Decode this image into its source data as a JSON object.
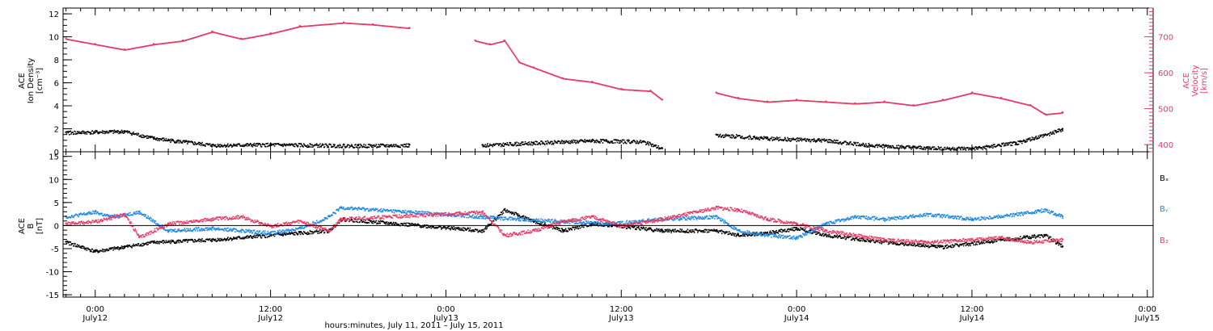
{
  "chart_data": [
    {
      "type": "scatter",
      "panel": "top",
      "ylabel_lines": [
        "ACE",
        "Ion Density",
        "[cm⁻³]"
      ],
      "ylim": [
        0,
        12.5
      ],
      "yticks": [
        0,
        2,
        4,
        6,
        8,
        10,
        12
      ],
      "y2label_lines": [
        "ACE",
        "Velocity",
        "[km/s]"
      ],
      "y2lim": [
        380,
        780
      ],
      "y2ticks": [
        400,
        500,
        600,
        700
      ],
      "series": [
        {
          "axis": "left",
          "color": "#000000",
          "values": [
            {
              "t": -2.0,
              "v": 1.7
            },
            {
              "t": 2.0,
              "v": 1.8
            },
            {
              "t": 4.0,
              "v": 1.2
            },
            {
              "t": 8.0,
              "v": 0.6
            },
            {
              "t": 12.0,
              "v": 0.65
            },
            {
              "t": 18.0,
              "v": 0.55
            },
            {
              "t": 21.5,
              "v": 0.6
            }
          ]
        },
        {
          "axis": "left",
          "color": "#000000",
          "values": [
            {
              "t": 26.5,
              "v": 0.6
            },
            {
              "t": 30.0,
              "v": 0.8
            },
            {
              "t": 34.0,
              "v": 1.0
            },
            {
              "t": 37.5,
              "v": 0.9
            },
            {
              "t": 38.8,
              "v": 0.3
            }
          ]
        },
        {
          "axis": "left",
          "color": "#000000",
          "values": [
            {
              "t": 42.5,
              "v": 1.5
            },
            {
              "t": 46.0,
              "v": 1.2
            },
            {
              "t": 50.0,
              "v": 1.0
            },
            {
              "t": 53.0,
              "v": 0.6
            },
            {
              "t": 56.0,
              "v": 0.4
            },
            {
              "t": 60.0,
              "v": 0.3
            },
            {
              "t": 63.0,
              "v": 0.8
            },
            {
              "t": 65.0,
              "v": 1.5
            },
            {
              "t": 66.2,
              "v": 2.0
            }
          ]
        },
        {
          "axis": "right",
          "color": "#e83a65",
          "values": [
            {
              "t": -2.0,
              "v": 695
            },
            {
              "t": 0.0,
              "v": 680
            },
            {
              "t": 2.0,
              "v": 665
            },
            {
              "t": 4.0,
              "v": 680
            },
            {
              "t": 6.0,
              "v": 690
            },
            {
              "t": 8.0,
              "v": 715
            },
            {
              "t": 10.0,
              "v": 695
            },
            {
              "t": 12.0,
              "v": 710
            },
            {
              "t": 14.0,
              "v": 730
            },
            {
              "t": 17.0,
              "v": 740
            },
            {
              "t": 19.0,
              "v": 735
            },
            {
              "t": 21.5,
              "v": 725
            }
          ]
        },
        {
          "axis": "right",
          "color": "#e83a65",
          "values": [
            {
              "t": 26.0,
              "v": 690
            },
            {
              "t": 27.0,
              "v": 680
            },
            {
              "t": 28.0,
              "v": 690
            },
            {
              "t": 29.0,
              "v": 630
            },
            {
              "t": 30.0,
              "v": 615
            },
            {
              "t": 32.0,
              "v": 585
            },
            {
              "t": 34.0,
              "v": 575
            },
            {
              "t": 36.0,
              "v": 555
            },
            {
              "t": 38.0,
              "v": 550
            },
            {
              "t": 38.8,
              "v": 525
            }
          ]
        },
        {
          "axis": "right",
          "color": "#e83a65",
          "values": [
            {
              "t": 42.5,
              "v": 545
            },
            {
              "t": 44.0,
              "v": 530
            },
            {
              "t": 46.0,
              "v": 520
            },
            {
              "t": 48.0,
              "v": 525
            },
            {
              "t": 50.0,
              "v": 520
            },
            {
              "t": 52.0,
              "v": 515
            },
            {
              "t": 54.0,
              "v": 520
            },
            {
              "t": 56.0,
              "v": 510
            },
            {
              "t": 58.0,
              "v": 525
            },
            {
              "t": 60.0,
              "v": 545
            },
            {
              "t": 62.0,
              "v": 530
            },
            {
              "t": 64.0,
              "v": 510
            },
            {
              "t": 65.0,
              "v": 485
            },
            {
              "t": 66.2,
              "v": 490
            }
          ]
        }
      ]
    },
    {
      "type": "scatter",
      "panel": "bottom",
      "ylabel_lines": [
        "ACE",
        "B",
        "[nT]"
      ],
      "ylim": [
        -15.5,
        16
      ],
      "yticks": [
        -15,
        -10,
        -5,
        0,
        5,
        10,
        15
      ],
      "legend": [
        "Bₓ",
        "Bᵧ",
        "B₂"
      ],
      "series": [
        {
          "name": "Bₓ",
          "color": "#000000",
          "values": [
            {
              "t": -2.0,
              "v": -3.5
            },
            {
              "t": 0.0,
              "v": -5.5
            },
            {
              "t": 2.0,
              "v": -4.5
            },
            {
              "t": 4.0,
              "v": -3.5
            },
            {
              "t": 8.0,
              "v": -3.0
            },
            {
              "t": 12.0,
              "v": -2.0
            },
            {
              "t": 14.0,
              "v": -1.5
            },
            {
              "t": 16.0,
              "v": -1.0
            },
            {
              "t": 16.8,
              "v": 1.5
            },
            {
              "t": 26.5,
              "v": -1.0
            },
            {
              "t": 28.0,
              "v": 3.5
            },
            {
              "t": 30.0,
              "v": 1.0
            },
            {
              "t": 32.0,
              "v": -1.0
            },
            {
              "t": 34.0,
              "v": 0.5
            },
            {
              "t": 36.0,
              "v": 0.0
            },
            {
              "t": 38.8,
              "v": -1.0
            },
            {
              "t": 42.5,
              "v": -1.0
            },
            {
              "t": 44.0,
              "v": -2.0
            },
            {
              "t": 46.0,
              "v": -1.5
            },
            {
              "t": 48.0,
              "v": -0.5
            },
            {
              "t": 50.0,
              "v": -2.0
            },
            {
              "t": 54.0,
              "v": -3.5
            },
            {
              "t": 58.0,
              "v": -4.5
            },
            {
              "t": 62.0,
              "v": -3.0
            },
            {
              "t": 65.0,
              "v": -2.0
            },
            {
              "t": 66.2,
              "v": -4.5
            }
          ]
        },
        {
          "name": "Bᵧ",
          "color": "#1e88e5",
          "values": [
            {
              "t": -2.0,
              "v": 2.0
            },
            {
              "t": 0.0,
              "v": 3.0
            },
            {
              "t": 1.0,
              "v": 2.0
            },
            {
              "t": 3.0,
              "v": 3.0
            },
            {
              "t": 5.0,
              "v": -1.0
            },
            {
              "t": 8.0,
              "v": -0.5
            },
            {
              "t": 10.0,
              "v": -1.0
            },
            {
              "t": 12.0,
              "v": -1.5
            },
            {
              "t": 14.0,
              "v": -0.5
            },
            {
              "t": 16.0,
              "v": 2.0
            },
            {
              "t": 16.8,
              "v": 4.0
            },
            {
              "t": 26.5,
              "v": 2.0
            },
            {
              "t": 29.0,
              "v": 1.5
            },
            {
              "t": 32.0,
              "v": 1.0
            },
            {
              "t": 35.0,
              "v": 0.5
            },
            {
              "t": 38.8,
              "v": 1.5
            },
            {
              "t": 42.5,
              "v": 2.0
            },
            {
              "t": 44.0,
              "v": -1.0
            },
            {
              "t": 46.0,
              "v": -2.0
            },
            {
              "t": 48.0,
              "v": -2.5
            },
            {
              "t": 50.0,
              "v": 0.5
            },
            {
              "t": 52.0,
              "v": 2.0
            },
            {
              "t": 54.0,
              "v": 1.5
            },
            {
              "t": 57.0,
              "v": 2.5
            },
            {
              "t": 60.0,
              "v": 1.5
            },
            {
              "t": 63.0,
              "v": 2.5
            },
            {
              "t": 65.0,
              "v": 3.5
            },
            {
              "t": 66.2,
              "v": 2.0
            }
          ]
        },
        {
          "name": "B₂",
          "color": "#e83a65",
          "values": [
            {
              "t": -2.0,
              "v": 0.5
            },
            {
              "t": 0.0,
              "v": 1.0
            },
            {
              "t": 2.0,
              "v": 2.5
            },
            {
              "t": 3.0,
              "v": -2.5
            },
            {
              "t": 5.0,
              "v": 0.5
            },
            {
              "t": 8.0,
              "v": 1.5
            },
            {
              "t": 10.0,
              "v": 2.0
            },
            {
              "t": 12.0,
              "v": 0.0
            },
            {
              "t": 14.0,
              "v": 1.0
            },
            {
              "t": 16.0,
              "v": -1.0
            },
            {
              "t": 16.8,
              "v": 1.5
            },
            {
              "t": 26.5,
              "v": 3.0
            },
            {
              "t": 28.0,
              "v": -2.0
            },
            {
              "t": 30.0,
              "v": -1.0
            },
            {
              "t": 32.0,
              "v": 1.0
            },
            {
              "t": 34.0,
              "v": 2.0
            },
            {
              "t": 36.0,
              "v": 0.0
            },
            {
              "t": 38.8,
              "v": 1.5
            },
            {
              "t": 42.5,
              "v": 4.0
            },
            {
              "t": 44.0,
              "v": 3.5
            },
            {
              "t": 46.0,
              "v": 1.5
            },
            {
              "t": 48.0,
              "v": 0.5
            },
            {
              "t": 50.0,
              "v": -1.0
            },
            {
              "t": 52.0,
              "v": -2.0
            },
            {
              "t": 54.0,
              "v": -3.0
            },
            {
              "t": 57.0,
              "v": -3.5
            },
            {
              "t": 60.0,
              "v": -3.0
            },
            {
              "t": 62.0,
              "v": -2.5
            },
            {
              "t": 64.0,
              "v": -3.5
            },
            {
              "t": 66.2,
              "v": -3.0
            }
          ]
        }
      ]
    }
  ],
  "x_axis": {
    "xlim": [
      -2.2,
      72.4
    ],
    "ticks": [
      {
        "t": 0,
        "time": "0:00",
        "date": "July12"
      },
      {
        "t": 12,
        "time": "12:00",
        "date": "July12"
      },
      {
        "t": 24,
        "time": "0:00",
        "date": "July13"
      },
      {
        "t": 36,
        "time": "12:00",
        "date": "July13"
      },
      {
        "t": 48,
        "time": "0:00",
        "date": "July14"
      },
      {
        "t": 60,
        "time": "12:00",
        "date": "July14"
      },
      {
        "t": 72,
        "time": "0:00",
        "date": "July15"
      }
    ],
    "title": "hours:minutes, July 11, 2011 – July 15, 2011"
  },
  "colors": {
    "black": "#000000",
    "blue": "#1e88e5",
    "red": "#e83a65"
  }
}
